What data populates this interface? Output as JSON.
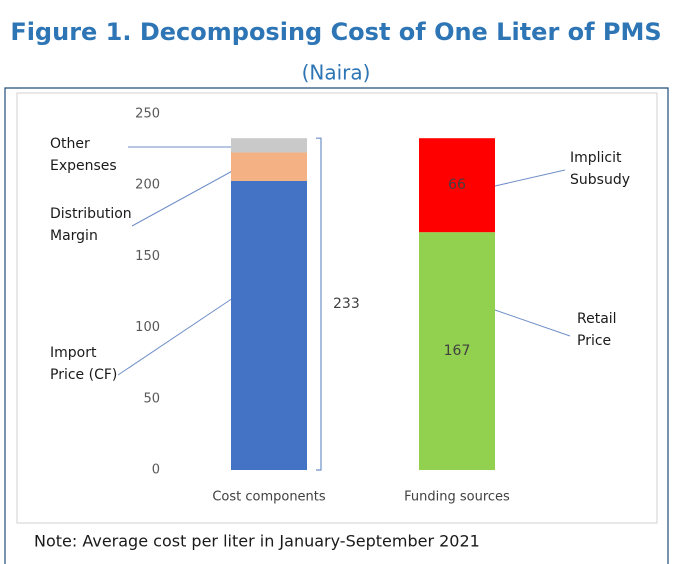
{
  "chart_data": {
    "type": "stacked_bar",
    "title": "Figure 1. Decomposing Cost of One Liter of PMS",
    "subtitle": "(Naira)",
    "note": "Note: Average cost per liter in January-September 2021",
    "categories": [
      "Cost components",
      "Funding sources"
    ],
    "series": [
      {
        "name": "Import Price (CF)",
        "color": "#4472c4",
        "values": [
          203,
          null
        ],
        "data_labels": false
      },
      {
        "name": "Distribution Margin",
        "color": "#f4b183",
        "values": [
          20,
          null
        ],
        "data_labels": false
      },
      {
        "name": "Other Expenses",
        "color": "#c9c9c9",
        "values": [
          10,
          null
        ],
        "data_labels": false
      },
      {
        "name": "Retail Price",
        "color": "#92d050",
        "values": [
          null,
          167
        ],
        "data_labels": true
      },
      {
        "name": "Implicit Subsudy",
        "color": "#ff0000",
        "values": [
          null,
          66
        ],
        "data_labels": true
      }
    ],
    "total": 233,
    "ylim": [
      0,
      250
    ],
    "yticks": [
      0,
      50,
      100,
      150,
      200,
      250
    ],
    "grid": false
  }
}
